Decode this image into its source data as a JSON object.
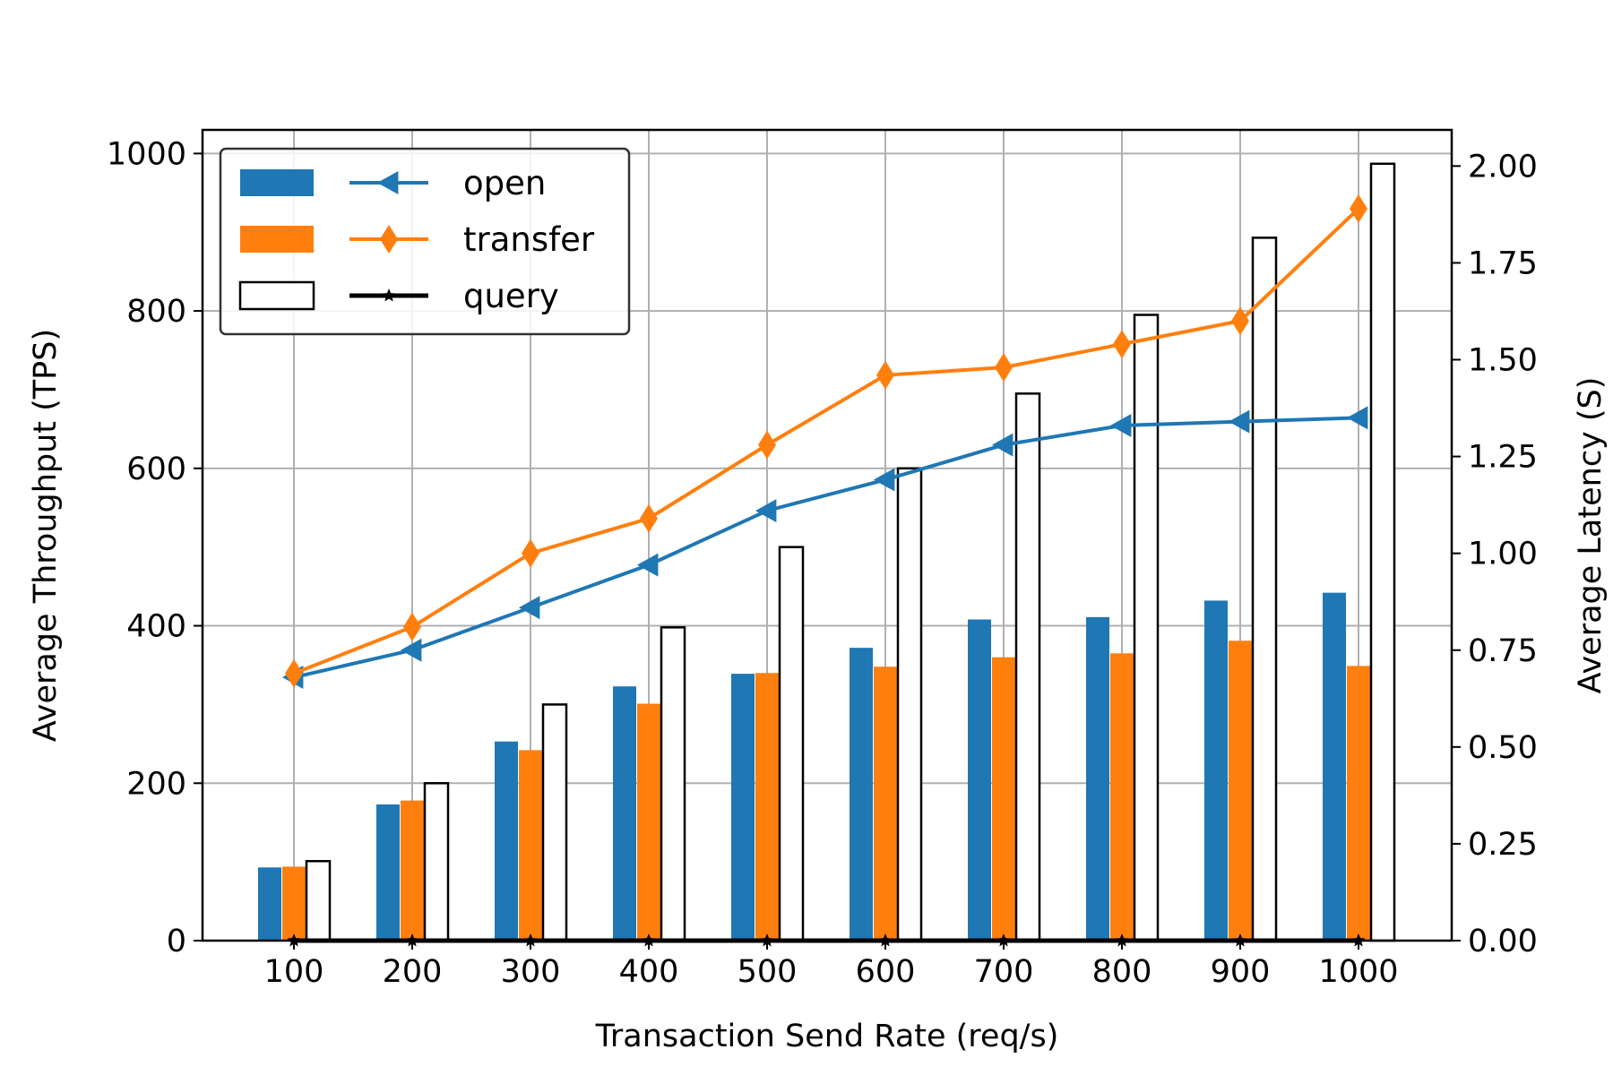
{
  "chart_data": {
    "type": "bar",
    "xlabel": "Transaction Send Rate (req/s)",
    "ylabel": "Average Throughput (TPS)",
    "y2label": "Average Latency (S)",
    "categories": [
      "100",
      "200",
      "300",
      "400",
      "500",
      "600",
      "700",
      "800",
      "900",
      "1000"
    ],
    "ylim": [
      0,
      1030
    ],
    "y2lim": [
      0,
      2.0933
    ],
    "yticks": [
      0,
      200,
      400,
      600,
      800,
      1000
    ],
    "y2ticks": [
      "0.00",
      "0.25",
      "0.50",
      "0.75",
      "1.00",
      "1.25",
      "1.50",
      "1.75",
      "2.00"
    ],
    "grid": true,
    "legend_position": "top-left",
    "throughput_series": [
      {
        "name": "open",
        "color": "#1f77b4",
        "style": "filled",
        "values": [
          93,
          173,
          253,
          323,
          339,
          372,
          408,
          411,
          432,
          442
        ]
      },
      {
        "name": "transfer",
        "color": "#ff7f0e",
        "style": "filled",
        "values": [
          94,
          178,
          242,
          301,
          340,
          348,
          360,
          365,
          381,
          349
        ]
      },
      {
        "name": "query",
        "color": "#000000",
        "style": "hollow",
        "values": [
          101,
          200,
          300,
          398,
          500,
          600,
          695,
          795,
          893,
          987
        ]
      }
    ],
    "latency_series": [
      {
        "name": "open",
        "color": "#1f77b4",
        "marker": "triangle-left",
        "values": [
          0.68,
          0.75,
          0.86,
          0.97,
          1.11,
          1.19,
          1.28,
          1.33,
          1.34,
          1.35
        ]
      },
      {
        "name": "transfer",
        "color": "#ff7f0e",
        "marker": "diamond",
        "values": [
          0.69,
          0.81,
          1.0,
          1.09,
          1.28,
          1.46,
          1.48,
          1.54,
          1.6,
          1.89
        ]
      },
      {
        "name": "query",
        "color": "#000000",
        "marker": "star",
        "values": [
          0.0,
          0.0,
          0.0,
          0.0,
          0.0,
          0.0,
          0.0,
          0.0,
          0.0,
          0.0
        ]
      }
    ]
  }
}
